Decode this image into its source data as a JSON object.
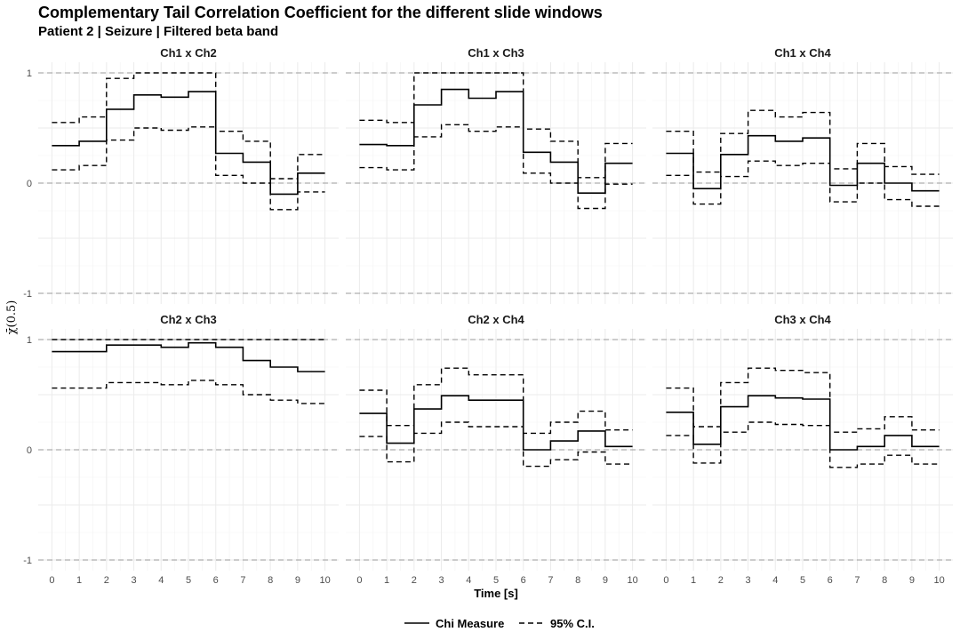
{
  "chart_data": {
    "type": "line",
    "title": "Complementary Tail Correlation Coefficient for the different slide windows",
    "subtitle": "Patient 2 | Seizure | Filtered beta band",
    "xlabel": "Time [s]",
    "ylabel": "χ̄(0.5)",
    "xlim": [
      0,
      10
    ],
    "ylim": [
      -1,
      1
    ],
    "x_ticks": [
      "0",
      "1",
      "2",
      "3",
      "4",
      "5",
      "6",
      "7",
      "8",
      "9",
      "10"
    ],
    "y_ticks": [
      "-1",
      "0",
      "1"
    ],
    "reference_lines": [
      -1,
      0,
      1
    ],
    "step": "hv",
    "x": [
      0,
      1,
      2,
      3,
      4,
      5,
      6,
      7,
      8,
      9,
      10
    ],
    "legend": {
      "position": "bottom",
      "items": [
        {
          "label": "Chi Measure",
          "style": "solid"
        },
        {
          "label": "95% C.I.",
          "style": "dashed"
        }
      ]
    },
    "panels": [
      {
        "name": "Ch1 x Ch2",
        "series": [
          {
            "name": "Chi Measure",
            "values": [
              0.34,
              0.38,
              0.67,
              0.8,
              0.78,
              0.83,
              0.27,
              0.19,
              -0.1,
              0.09,
              0.09
            ]
          },
          {
            "name": "95% C.I. upper",
            "values": [
              0.55,
              0.6,
              0.95,
              1.0,
              1.0,
              1.0,
              0.47,
              0.38,
              0.04,
              0.26,
              0.26
            ]
          },
          {
            "name": "95% C.I. lower",
            "values": [
              0.12,
              0.16,
              0.39,
              0.5,
              0.48,
              0.51,
              0.07,
              0.0,
              -0.24,
              -0.08,
              -0.08
            ]
          }
        ]
      },
      {
        "name": "Ch1 x Ch3",
        "series": [
          {
            "name": "Chi Measure",
            "values": [
              0.35,
              0.34,
              0.71,
              0.85,
              0.77,
              0.83,
              0.28,
              0.19,
              -0.09,
              0.18,
              0.18
            ]
          },
          {
            "name": "95% C.I. upper",
            "values": [
              0.57,
              0.55,
              1.0,
              1.0,
              1.0,
              1.0,
              0.49,
              0.38,
              0.05,
              0.36,
              0.36
            ]
          },
          {
            "name": "95% C.I. lower",
            "values": [
              0.14,
              0.12,
              0.42,
              0.53,
              0.47,
              0.51,
              0.09,
              0.0,
              -0.23,
              -0.01,
              -0.01
            ]
          }
        ]
      },
      {
        "name": "Ch1 x Ch4",
        "series": [
          {
            "name": "Chi Measure",
            "values": [
              0.27,
              -0.05,
              0.26,
              0.43,
              0.38,
              0.41,
              -0.02,
              0.18,
              0.0,
              -0.07,
              -0.07
            ]
          },
          {
            "name": "95% C.I. upper",
            "values": [
              0.47,
              0.1,
              0.45,
              0.66,
              0.6,
              0.64,
              0.13,
              0.36,
              0.15,
              0.08,
              0.08
            ]
          },
          {
            "name": "95% C.I. lower",
            "values": [
              0.07,
              -0.19,
              0.06,
              0.2,
              0.16,
              0.18,
              -0.17,
              0.0,
              -0.15,
              -0.21,
              -0.21
            ]
          }
        ]
      },
      {
        "name": "Ch2 x Ch3",
        "series": [
          {
            "name": "Chi Measure",
            "values": [
              0.89,
              0.89,
              0.95,
              0.95,
              0.93,
              0.97,
              0.93,
              0.81,
              0.75,
              0.71,
              0.71
            ]
          },
          {
            "name": "95% C.I. upper",
            "values": [
              1.0,
              1.0,
              1.0,
              1.0,
              1.0,
              1.0,
              1.0,
              1.0,
              1.0,
              1.0,
              1.0
            ]
          },
          {
            "name": "95% C.I. lower",
            "values": [
              0.56,
              0.56,
              0.61,
              0.61,
              0.59,
              0.63,
              0.59,
              0.5,
              0.45,
              0.42,
              0.42
            ]
          }
        ]
      },
      {
        "name": "Ch2 x Ch4",
        "series": [
          {
            "name": "Chi Measure",
            "values": [
              0.33,
              0.06,
              0.37,
              0.49,
              0.45,
              0.45,
              0.0,
              0.08,
              0.17,
              0.03,
              0.03
            ]
          },
          {
            "name": "95% C.I. upper",
            "values": [
              0.54,
              0.22,
              0.59,
              0.74,
              0.68,
              0.68,
              0.15,
              0.25,
              0.35,
              0.18,
              0.18
            ]
          },
          {
            "name": "95% C.I. lower",
            "values": [
              0.12,
              -0.11,
              0.15,
              0.25,
              0.21,
              0.21,
              -0.15,
              -0.09,
              -0.02,
              -0.13,
              -0.13
            ]
          }
        ]
      },
      {
        "name": "Ch3 x Ch4",
        "series": [
          {
            "name": "Chi Measure",
            "values": [
              0.34,
              0.05,
              0.39,
              0.49,
              0.47,
              0.46,
              0.0,
              0.03,
              0.13,
              0.03,
              0.03
            ]
          },
          {
            "name": "95% C.I. upper",
            "values": [
              0.56,
              0.21,
              0.61,
              0.74,
              0.72,
              0.7,
              0.16,
              0.19,
              0.3,
              0.18,
              0.18
            ]
          },
          {
            "name": "95% C.I. lower",
            "values": [
              0.13,
              -0.12,
              0.16,
              0.25,
              0.23,
              0.22,
              -0.16,
              -0.13,
              -0.05,
              -0.13,
              -0.13
            ]
          }
        ]
      }
    ]
  }
}
